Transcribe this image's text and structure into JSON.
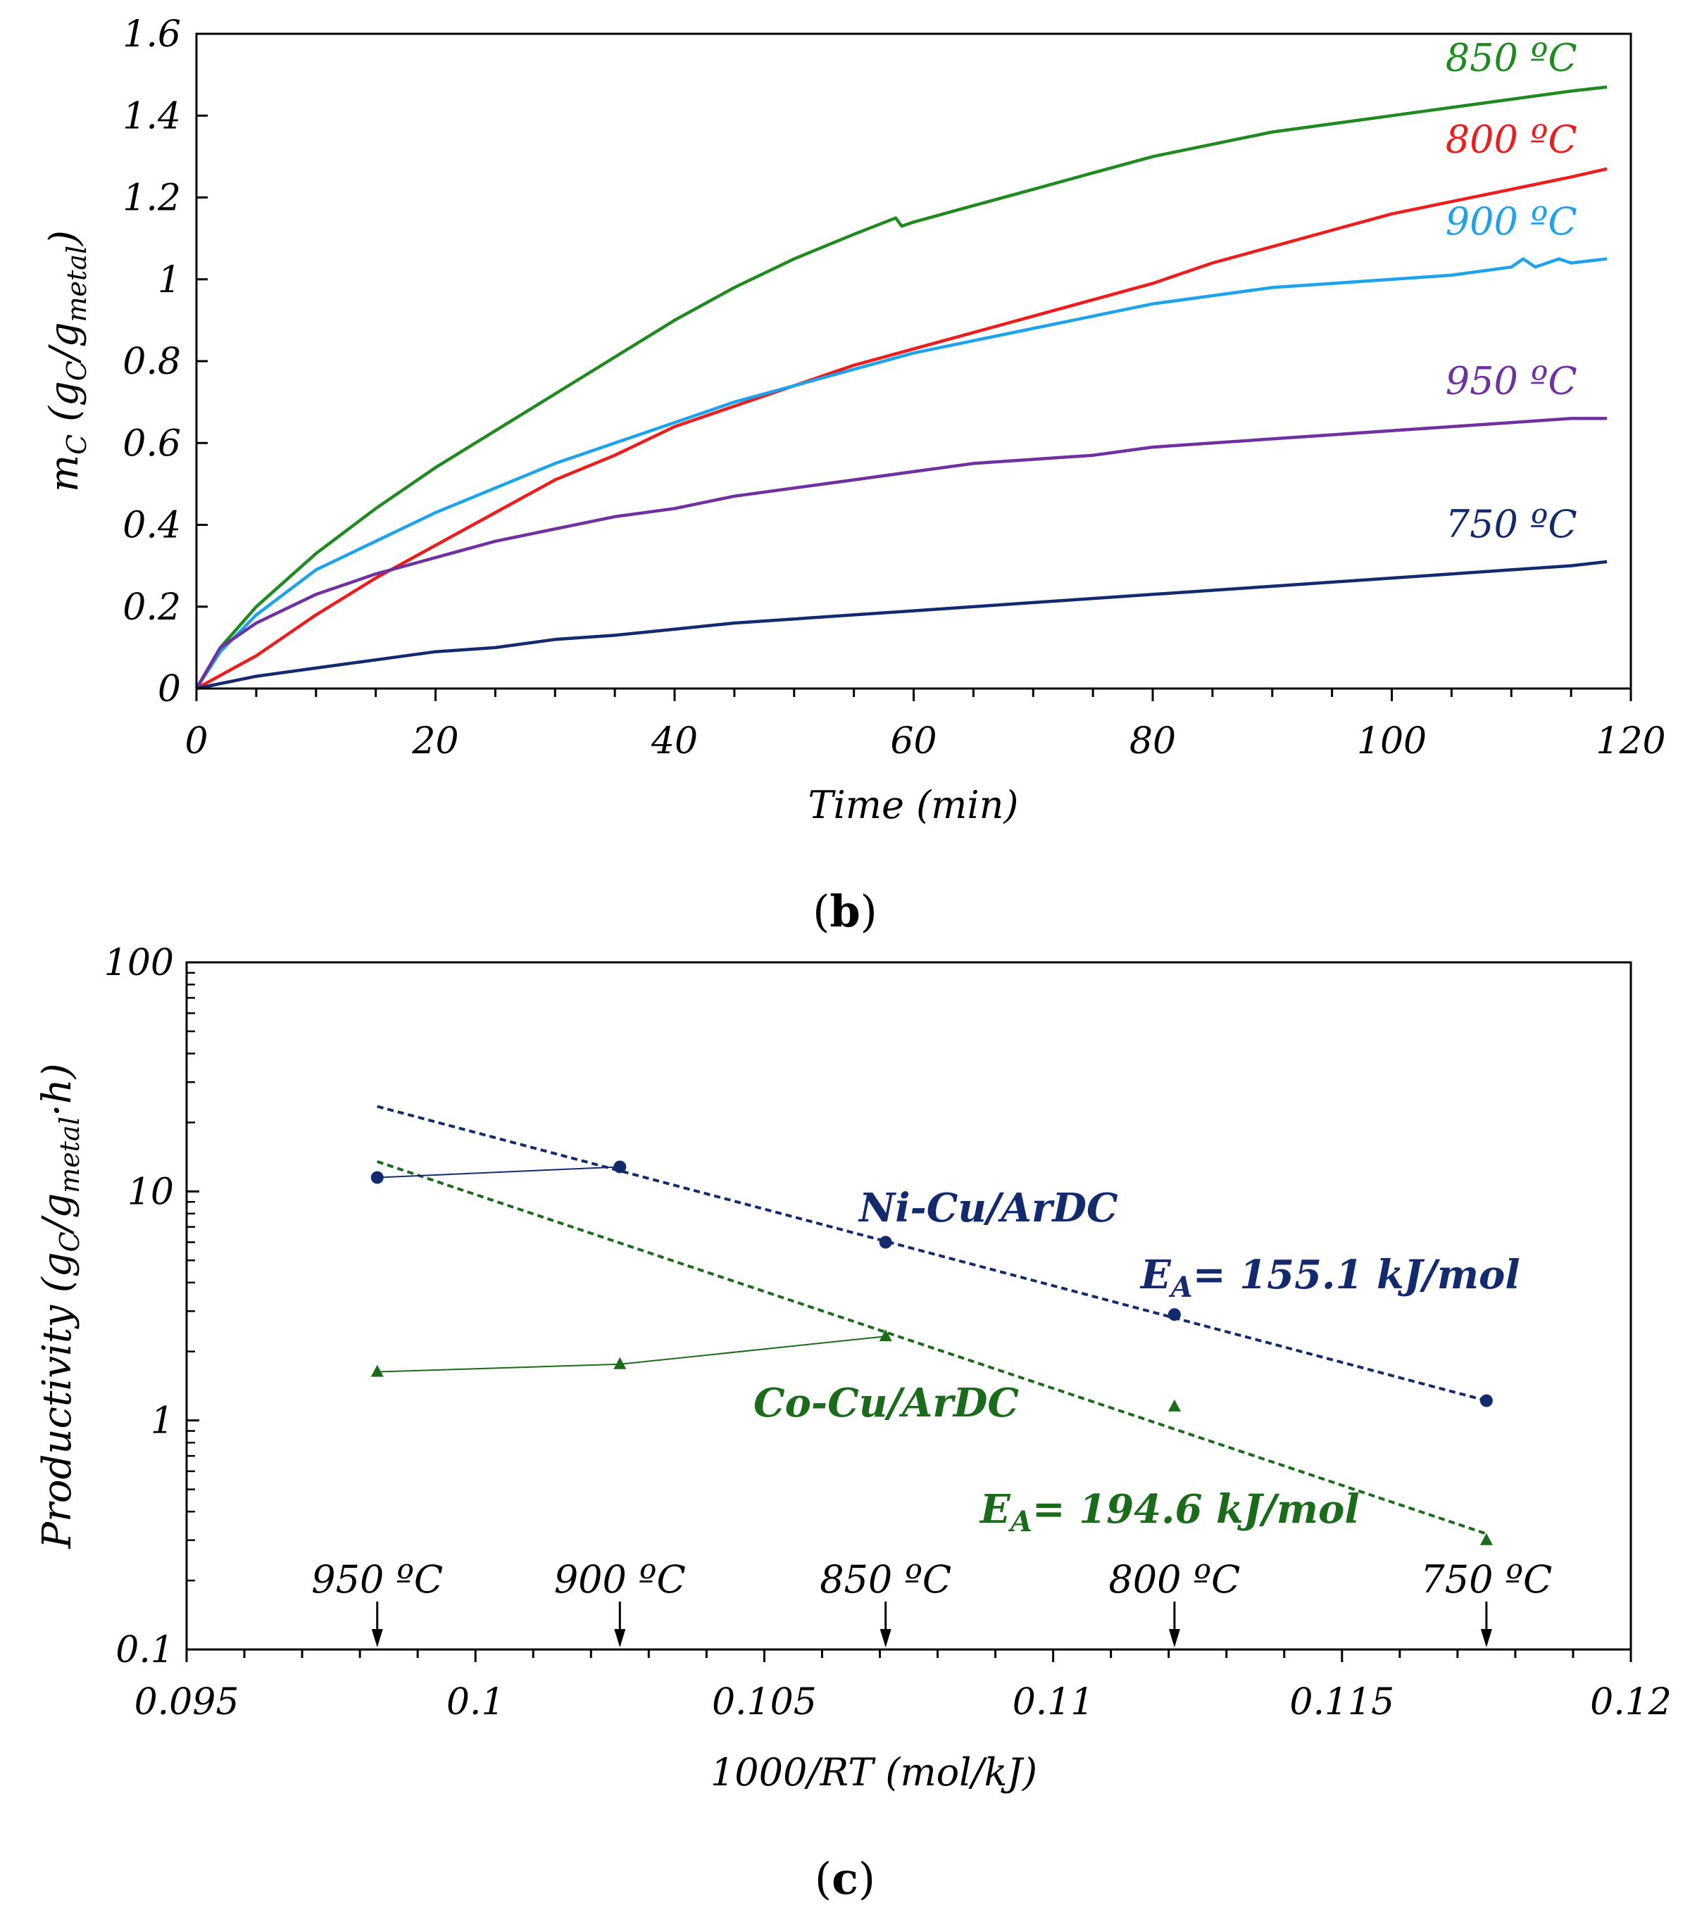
{
  "colors": {
    "c850": "#1f8a1f",
    "c800": "#ee1c1c",
    "c900": "#1ca3ec",
    "c950": "#7030a0",
    "c750": "#142a6e",
    "ni": "#142a6e",
    "co": "#1a6b1a",
    "axis": "#000000"
  },
  "panel_b": {
    "label": "(b)",
    "label_letter": "b"
  },
  "panel_c": {
    "label": "(c)",
    "label_letter": "c",
    "ni_label": "Ni-Cu/ArDC",
    "co_label": "Co-Cu/ArDC",
    "ni_ea": "E_A = 155.1 kJ/mol",
    "co_ea": "E_A = 194.6 kJ/mol",
    "ni_ea_value": "= 155.1 kJ/mol",
    "co_ea_value": "= 194.6 kJ/mol"
  },
  "chart_data": [
    {
      "type": "line",
      "id": "b",
      "title": "",
      "xlabel": "Time (min)",
      "ylabel": "m_C (g_C/g_metal)",
      "xlim": [
        0,
        120
      ],
      "ylim": [
        0,
        1.6
      ],
      "xticks": [
        0,
        20,
        40,
        60,
        80,
        100,
        120
      ],
      "yticks": [
        0,
        0.2,
        0.4,
        0.6,
        0.8,
        1,
        1.2,
        1.4,
        1.6
      ],
      "ytick_labels": [
        "0",
        "0.2",
        "0.4",
        "0.6",
        "0.8",
        "1",
        "1.2",
        "1.4",
        "1.6"
      ],
      "grid": false,
      "series": [
        {
          "name": "850 ºC",
          "color_key": "c850",
          "x": [
            0,
            2,
            5,
            10,
            15,
            20,
            25,
            30,
            35,
            40,
            45,
            50,
            55,
            58.5,
            59,
            60,
            65,
            70,
            75,
            80,
            85,
            90,
            95,
            100,
            105,
            110,
            115,
            118
          ],
          "y": [
            0,
            0.1,
            0.2,
            0.33,
            0.44,
            0.54,
            0.63,
            0.72,
            0.81,
            0.9,
            0.98,
            1.05,
            1.11,
            1.15,
            1.13,
            1.14,
            1.18,
            1.22,
            1.26,
            1.3,
            1.33,
            1.36,
            1.38,
            1.4,
            1.42,
            1.44,
            1.46,
            1.47
          ]
        },
        {
          "name": "800 ºC",
          "color_key": "c800",
          "x": [
            0,
            5,
            10,
            15,
            20,
            25,
            30,
            35,
            40,
            45,
            50,
            55,
            60,
            65,
            70,
            75,
            80,
            85,
            90,
            95,
            100,
            105,
            110,
            115,
            118
          ],
          "y": [
            0,
            0.08,
            0.18,
            0.27,
            0.35,
            0.43,
            0.51,
            0.57,
            0.64,
            0.69,
            0.74,
            0.79,
            0.83,
            0.87,
            0.91,
            0.95,
            0.99,
            1.04,
            1.08,
            1.12,
            1.16,
            1.19,
            1.22,
            1.25,
            1.27
          ]
        },
        {
          "name": "900 ºC",
          "color_key": "c900",
          "x": [
            0,
            2,
            5,
            10,
            15,
            20,
            25,
            30,
            35,
            40,
            45,
            50,
            55,
            60,
            65,
            70,
            75,
            80,
            85,
            90,
            95,
            100,
            105,
            110,
            111,
            112,
            114,
            115,
            118
          ],
          "y": [
            0,
            0.09,
            0.18,
            0.29,
            0.36,
            0.43,
            0.49,
            0.55,
            0.6,
            0.65,
            0.7,
            0.74,
            0.78,
            0.82,
            0.85,
            0.88,
            0.91,
            0.94,
            0.96,
            0.98,
            0.99,
            1.0,
            1.01,
            1.03,
            1.05,
            1.03,
            1.05,
            1.04,
            1.05
          ]
        },
        {
          "name": "950 ºC",
          "color_key": "c950",
          "x": [
            0,
            2,
            5,
            10,
            15,
            20,
            25,
            30,
            35,
            40,
            45,
            50,
            55,
            60,
            65,
            70,
            75,
            80,
            85,
            90,
            95,
            100,
            105,
            110,
            115,
            118
          ],
          "y": [
            0,
            0.1,
            0.16,
            0.23,
            0.28,
            0.32,
            0.36,
            0.39,
            0.42,
            0.44,
            0.47,
            0.49,
            0.51,
            0.53,
            0.55,
            0.56,
            0.57,
            0.59,
            0.6,
            0.61,
            0.62,
            0.63,
            0.64,
            0.65,
            0.66,
            0.66
          ]
        },
        {
          "name": "750 ºC",
          "color_key": "c750",
          "x": [
            0,
            5,
            10,
            15,
            20,
            25,
            30,
            35,
            40,
            45,
            50,
            55,
            60,
            65,
            70,
            75,
            80,
            85,
            90,
            95,
            100,
            105,
            110,
            115,
            118
          ],
          "y": [
            0,
            0.03,
            0.05,
            0.07,
            0.09,
            0.1,
            0.12,
            0.13,
            0.145,
            0.16,
            0.17,
            0.18,
            0.19,
            0.2,
            0.21,
            0.22,
            0.23,
            0.24,
            0.25,
            0.26,
            0.27,
            0.28,
            0.29,
            0.3,
            0.31
          ]
        }
      ],
      "annotations": [
        {
          "text": "850 ºC",
          "color_key": "c850",
          "x": 110,
          "y": 1.51
        },
        {
          "text": "800 ºC",
          "color_key": "c800",
          "x": 110,
          "y": 1.31
        },
        {
          "text": "900 ºC",
          "color_key": "c900",
          "x": 110,
          "y": 1.11
        },
        {
          "text": "950 ºC",
          "color_key": "c950",
          "x": 110,
          "y": 0.72
        },
        {
          "text": "750 ºC",
          "color_key": "c750",
          "x": 110,
          "y": 0.37
        }
      ]
    },
    {
      "type": "scatter",
      "id": "c",
      "title": "",
      "xlabel": "1000/RT (mol/kJ)",
      "ylabel": "Productivity (g_C/g_metal·h)",
      "xlim": [
        0.095,
        0.12
      ],
      "ylim": [
        0.1,
        100
      ],
      "yscale": "log",
      "xticks": [
        0.095,
        0.1,
        0.105,
        0.11,
        0.115,
        0.12
      ],
      "xtick_labels": [
        "0.095",
        "0.1",
        "0.105",
        "0.11",
        "0.115",
        "0.12"
      ],
      "yticks": [
        0.1,
        1,
        10,
        100
      ],
      "ytick_labels": [
        "0.1",
        "1",
        "10",
        "100"
      ],
      "grid": false,
      "temperature_markers": [
        {
          "x": 0.0983,
          "label": "950 ºC"
        },
        {
          "x": 0.1025,
          "label": "900 ºC"
        },
        {
          "x": 0.1071,
          "label": "850 ºC"
        },
        {
          "x": 0.1121,
          "label": "800 ºC"
        },
        {
          "x": 0.1175,
          "label": "750 ºC"
        }
      ],
      "series": [
        {
          "name": "Ni-Cu/ArDC",
          "marker": "circle",
          "color_key": "ni",
          "x": [
            0.0983,
            0.1025,
            0.1071,
            0.1121,
            0.1175
          ],
          "y": [
            11.5,
            12.8,
            6.0,
            2.9,
            1.22
          ],
          "fit": {
            "x": [
              0.0983,
              0.1175
            ],
            "y": [
              23.5,
              1.22
            ],
            "Ea": "155.1 kJ/mol"
          },
          "connector": {
            "x": [
              0.0983,
              0.1025
            ],
            "y": [
              11.5,
              12.8
            ]
          }
        },
        {
          "name": "Co-Cu/ArDC",
          "marker": "triangle",
          "color_key": "co",
          "x": [
            0.0983,
            0.1025,
            0.1071,
            0.1121,
            0.1175
          ],
          "y": [
            1.63,
            1.76,
            2.33,
            1.15,
            0.3
          ],
          "fit": {
            "x": [
              0.0983,
              0.1175
            ],
            "y": [
              13.5,
              0.32
            ],
            "Ea": "194.6 kJ/mol"
          },
          "connector": {
            "x": [
              0.0983,
              0.1025,
              0.1071
            ],
            "y": [
              1.63,
              1.76,
              2.33
            ]
          }
        }
      ]
    }
  ]
}
